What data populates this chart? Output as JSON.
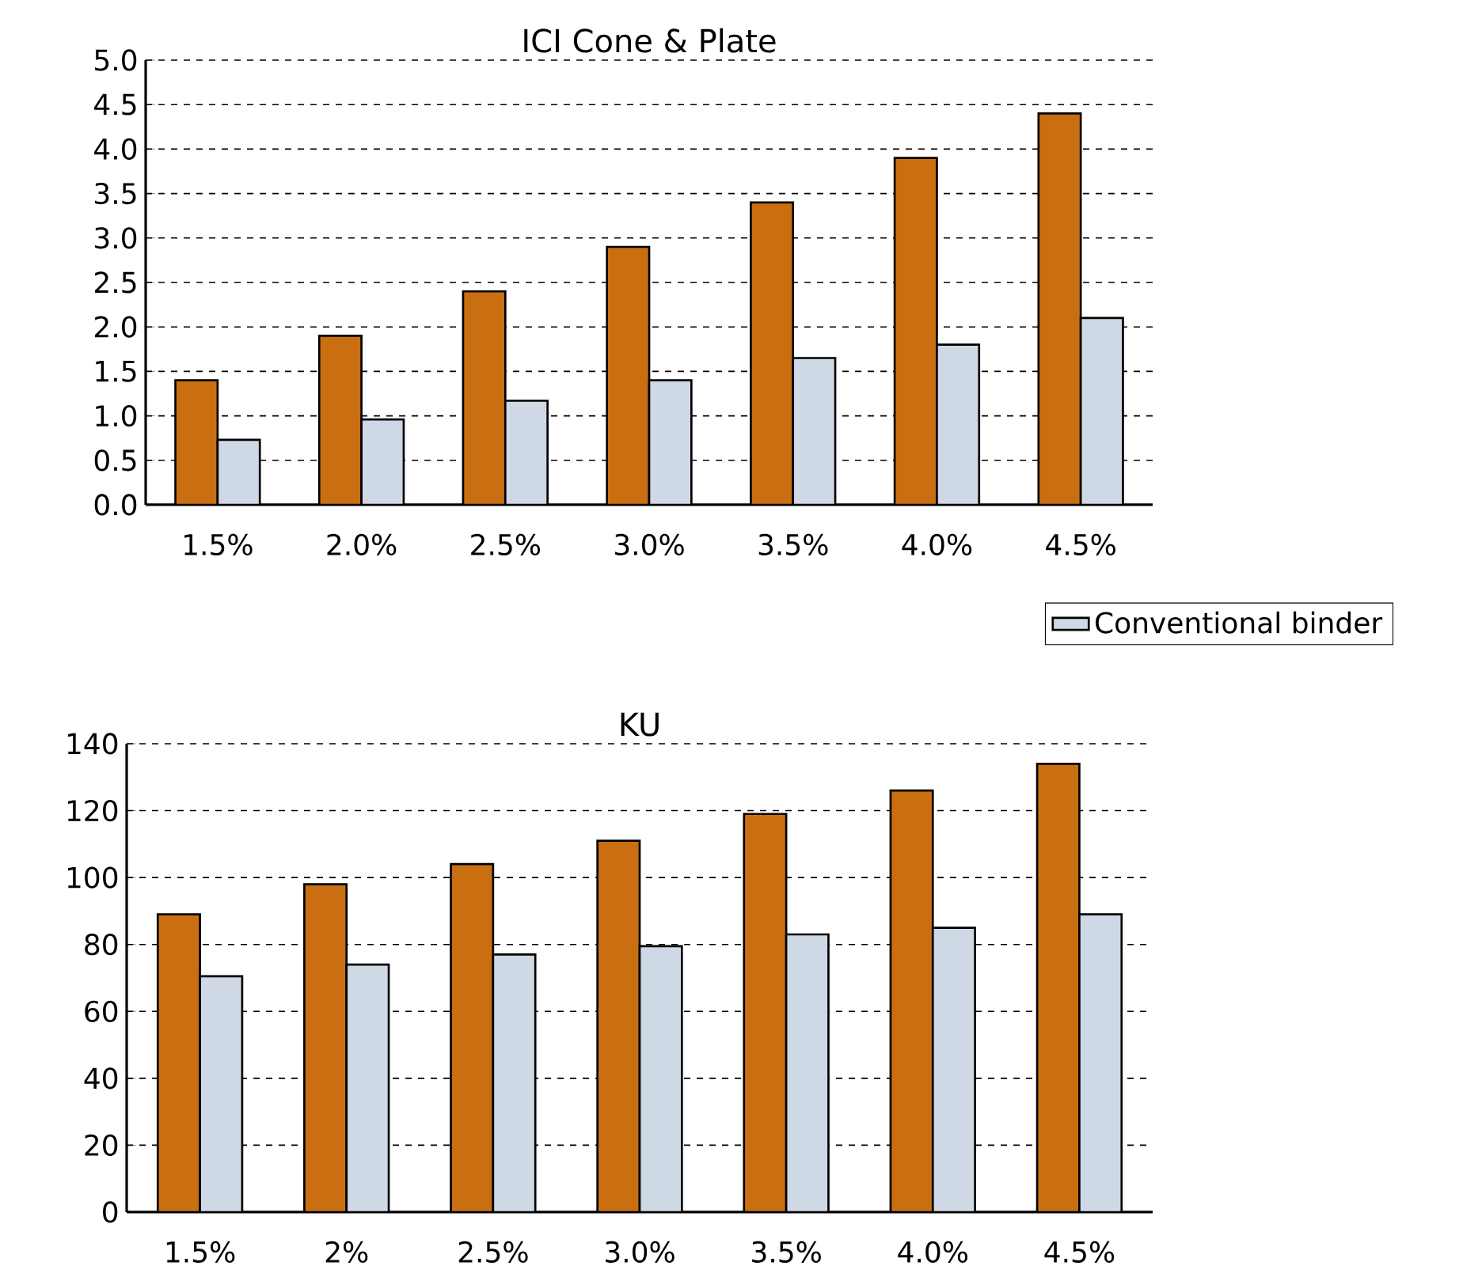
{
  "chart_data": [
    {
      "type": "bar",
      "title": "ICI Cone & Plate",
      "categories": [
        "1.5%",
        "2.0%",
        "2.5%",
        "3.0%",
        "3.5%",
        "4.0%",
        "4.5%"
      ],
      "series": [
        {
          "color": "#c96f12",
          "values": [
            1.4,
            1.9,
            2.4,
            2.9,
            3.4,
            3.9,
            4.4
          ]
        },
        {
          "name": "Conventional binder",
          "color": "#cfd8e5",
          "values": [
            0.73,
            0.96,
            1.17,
            1.4,
            1.65,
            1.8,
            2.1
          ]
        }
      ],
      "ylim": [
        0,
        5
      ],
      "yticks": [
        {
          "value": 0,
          "label": "0.0"
        },
        {
          "value": 0.5,
          "label": "0.5"
        },
        {
          "value": 1,
          "label": "1.0"
        },
        {
          "value": 1.5,
          "label": "1.5"
        },
        {
          "value": 2,
          "label": "2.0"
        },
        {
          "value": 2.5,
          "label": "2.5"
        },
        {
          "value": 3,
          "label": "3.0"
        },
        {
          "value": 3.5,
          "label": "3.5"
        },
        {
          "value": 4,
          "label": "4.0"
        },
        {
          "value": 4.5,
          "label": "4.5"
        },
        {
          "value": 5,
          "label": "5.0"
        }
      ],
      "grid": "y",
      "legend": "bottom right"
    },
    {
      "type": "bar",
      "title": "KU",
      "categories": [
        "1.5%",
        "2%",
        "2.5%",
        "3.0%",
        "3.5%",
        "4.0%",
        "4.5%"
      ],
      "series": [
        {
          "color": "#c96f12",
          "values": [
            89,
            98,
            104,
            111,
            119,
            126,
            134
          ]
        },
        {
          "color": "#cfd8e5",
          "values": [
            70.5,
            74,
            77,
            79.5,
            83,
            85,
            89
          ]
        }
      ],
      "ylim": [
        0,
        140
      ],
      "yticks": [
        0,
        20,
        40,
        60,
        80,
        100,
        120,
        140
      ],
      "grid": "y"
    }
  ]
}
